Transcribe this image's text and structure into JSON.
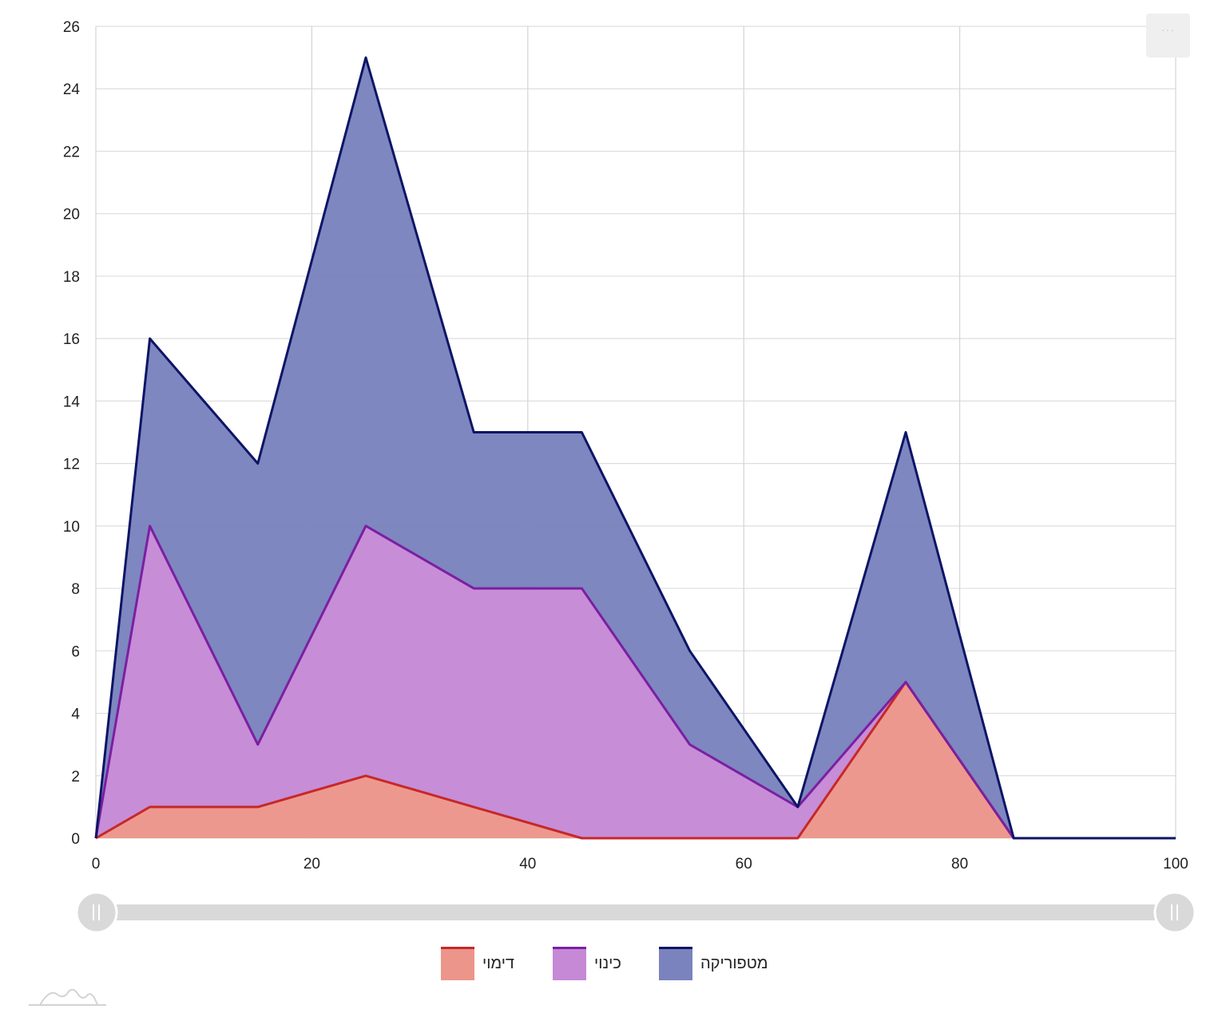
{
  "chart_data": {
    "type": "area",
    "stacked": true,
    "title": "",
    "xlabel": "",
    "ylabel": "",
    "x": [
      0,
      5,
      15,
      25,
      35,
      45,
      55,
      65,
      75,
      85,
      100
    ],
    "xlim": [
      0,
      100
    ],
    "ylim": [
      0,
      26
    ],
    "x_ticks": [
      "0",
      "20",
      "40",
      "60",
      "80",
      "100"
    ],
    "y_ticks": [
      "0",
      "2",
      "4",
      "6",
      "8",
      "10",
      "12",
      "14",
      "16",
      "18",
      "20",
      "22",
      "24",
      "26"
    ],
    "grid": true,
    "legend_position": "bottom",
    "scrollbar": {
      "range": [
        0,
        100
      ]
    },
    "series": [
      {
        "name": "דימוי",
        "values": [
          0,
          1,
          1,
          2,
          1,
          0,
          0,
          0,
          5,
          0,
          0
        ],
        "fill": "#ec958a",
        "stroke": "#c62828"
      },
      {
        "name": "כינוי",
        "values": [
          0,
          9,
          2,
          8,
          7,
          8,
          3,
          1,
          0,
          0,
          0
        ],
        "fill": "#c589d6",
        "stroke": "#7b1fa2"
      },
      {
        "name": "מטפוריקה",
        "values": [
          0,
          6,
          9,
          15,
          5,
          5,
          3,
          0,
          8,
          0,
          0
        ],
        "fill": "#7a83bd",
        "stroke": "#0d1566"
      }
    ]
  },
  "controls": {
    "menu_icon": "ellipsis-icon",
    "menu_label": "···",
    "scroll_handle_icon": "grip-icon",
    "logo_icon": "amcharts-logo-icon"
  }
}
